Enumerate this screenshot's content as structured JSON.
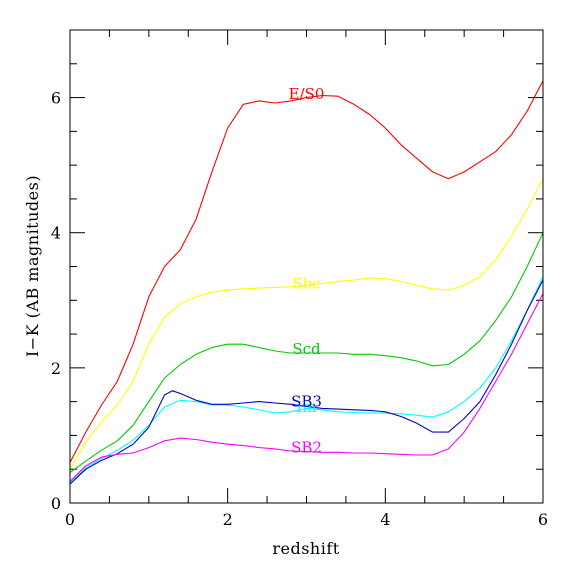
{
  "chart_data": {
    "type": "line",
    "title": "",
    "xlabel": "redshift",
    "ylabel": "I−K (AB magnitudes)",
    "xlim": [
      0,
      6
    ],
    "ylim": [
      0,
      7
    ],
    "grid": false,
    "legend": "none (series labelled inline)",
    "x_major_ticks": [
      0,
      2,
      4,
      6
    ],
    "x_tick_labels": [
      "0",
      "2",
      "4",
      "6"
    ],
    "y_major_ticks": [
      0,
      2,
      4,
      6
    ],
    "y_tick_labels": [
      "0",
      "2",
      "4",
      "6"
    ],
    "series": [
      {
        "name": "E/S0",
        "color": "#ff0000",
        "label_at": [
          3.0,
          6.05
        ],
        "points": [
          [
            0,
            0.6
          ],
          [
            0.2,
            1.05
          ],
          [
            0.4,
            1.45
          ],
          [
            0.6,
            1.8
          ],
          [
            0.8,
            2.35
          ],
          [
            1.0,
            3.05
          ],
          [
            1.2,
            3.5
          ],
          [
            1.4,
            3.75
          ],
          [
            1.6,
            4.2
          ],
          [
            1.8,
            4.9
          ],
          [
            2.0,
            5.55
          ],
          [
            2.2,
            5.9
          ],
          [
            2.4,
            5.95
          ],
          [
            2.6,
            5.92
          ],
          [
            2.8,
            5.95
          ],
          [
            3.0,
            6.0
          ],
          [
            3.2,
            6.03
          ],
          [
            3.4,
            6.02
          ],
          [
            3.6,
            5.9
          ],
          [
            3.8,
            5.75
          ],
          [
            4.0,
            5.55
          ],
          [
            4.2,
            5.3
          ],
          [
            4.4,
            5.1
          ],
          [
            4.6,
            4.9
          ],
          [
            4.8,
            4.8
          ],
          [
            5.0,
            4.9
          ],
          [
            5.2,
            5.05
          ],
          [
            5.4,
            5.2
          ],
          [
            5.6,
            5.45
          ],
          [
            5.8,
            5.8
          ],
          [
            6.0,
            6.25
          ]
        ]
      },
      {
        "name": "Sbc",
        "color": "#ffff00",
        "label_at": [
          3.0,
          3.25
        ],
        "points": [
          [
            0,
            0.5
          ],
          [
            0.2,
            0.9
          ],
          [
            0.4,
            1.2
          ],
          [
            0.6,
            1.45
          ],
          [
            0.8,
            1.8
          ],
          [
            1.0,
            2.35
          ],
          [
            1.2,
            2.75
          ],
          [
            1.4,
            2.95
          ],
          [
            1.6,
            3.05
          ],
          [
            1.8,
            3.12
          ],
          [
            2.0,
            3.15
          ],
          [
            2.2,
            3.17
          ],
          [
            2.4,
            3.18
          ],
          [
            2.6,
            3.19
          ],
          [
            2.8,
            3.2
          ],
          [
            3.0,
            3.22
          ],
          [
            3.2,
            3.25
          ],
          [
            3.4,
            3.28
          ],
          [
            3.6,
            3.3
          ],
          [
            3.8,
            3.33
          ],
          [
            4.0,
            3.32
          ],
          [
            4.2,
            3.28
          ],
          [
            4.4,
            3.22
          ],
          [
            4.6,
            3.17
          ],
          [
            4.8,
            3.15
          ],
          [
            5.0,
            3.22
          ],
          [
            5.2,
            3.35
          ],
          [
            5.4,
            3.6
          ],
          [
            5.6,
            3.95
          ],
          [
            5.8,
            4.35
          ],
          [
            6.0,
            4.8
          ]
        ]
      },
      {
        "name": "Scd",
        "color": "#00cc00",
        "label_at": [
          3.0,
          2.28
        ],
        "points": [
          [
            0,
            0.45
          ],
          [
            0.2,
            0.62
          ],
          [
            0.4,
            0.78
          ],
          [
            0.6,
            0.92
          ],
          [
            0.8,
            1.15
          ],
          [
            1.0,
            1.5
          ],
          [
            1.2,
            1.85
          ],
          [
            1.4,
            2.05
          ],
          [
            1.6,
            2.2
          ],
          [
            1.8,
            2.3
          ],
          [
            2.0,
            2.35
          ],
          [
            2.2,
            2.35
          ],
          [
            2.4,
            2.3
          ],
          [
            2.6,
            2.25
          ],
          [
            2.8,
            2.22
          ],
          [
            3.0,
            2.22
          ],
          [
            3.2,
            2.22
          ],
          [
            3.4,
            2.22
          ],
          [
            3.6,
            2.2
          ],
          [
            3.8,
            2.2
          ],
          [
            4.0,
            2.18
          ],
          [
            4.2,
            2.15
          ],
          [
            4.4,
            2.1
          ],
          [
            4.6,
            2.03
          ],
          [
            4.8,
            2.05
          ],
          [
            5.0,
            2.2
          ],
          [
            5.2,
            2.4
          ],
          [
            5.4,
            2.7
          ],
          [
            5.6,
            3.05
          ],
          [
            5.8,
            3.5
          ],
          [
            6.0,
            4.0
          ]
        ]
      },
      {
        "name": "Im",
        "color": "#00ffff",
        "label_at": [
          3.0,
          1.42
        ],
        "points": [
          [
            0,
            0.3
          ],
          [
            0.2,
            0.52
          ],
          [
            0.4,
            0.66
          ],
          [
            0.6,
            0.78
          ],
          [
            0.8,
            0.93
          ],
          [
            1.0,
            1.15
          ],
          [
            1.2,
            1.42
          ],
          [
            1.4,
            1.52
          ],
          [
            1.6,
            1.5
          ],
          [
            1.8,
            1.45
          ],
          [
            2.0,
            1.45
          ],
          [
            2.2,
            1.42
          ],
          [
            2.4,
            1.38
          ],
          [
            2.6,
            1.33
          ],
          [
            2.8,
            1.35
          ],
          [
            3.0,
            1.4
          ],
          [
            3.2,
            1.38
          ],
          [
            3.4,
            1.35
          ],
          [
            3.6,
            1.34
          ],
          [
            3.8,
            1.33
          ],
          [
            4.0,
            1.33
          ],
          [
            4.2,
            1.32
          ],
          [
            4.4,
            1.3
          ],
          [
            4.6,
            1.27
          ],
          [
            4.8,
            1.35
          ],
          [
            5.0,
            1.5
          ],
          [
            5.2,
            1.7
          ],
          [
            5.4,
            2.0
          ],
          [
            5.6,
            2.4
          ],
          [
            5.8,
            2.85
          ],
          [
            6.0,
            3.35
          ]
        ]
      },
      {
        "name": "SB3",
        "color": "#0000cc",
        "label_at": [
          3.0,
          1.5
        ],
        "points": [
          [
            0,
            0.28
          ],
          [
            0.2,
            0.5
          ],
          [
            0.4,
            0.63
          ],
          [
            0.6,
            0.73
          ],
          [
            0.8,
            0.87
          ],
          [
            1.0,
            1.12
          ],
          [
            1.2,
            1.6
          ],
          [
            1.3,
            1.66
          ],
          [
            1.4,
            1.62
          ],
          [
            1.6,
            1.52
          ],
          [
            1.8,
            1.46
          ],
          [
            2.0,
            1.46
          ],
          [
            2.2,
            1.48
          ],
          [
            2.4,
            1.5
          ],
          [
            2.6,
            1.48
          ],
          [
            2.8,
            1.46
          ],
          [
            3.0,
            1.43
          ],
          [
            3.2,
            1.4
          ],
          [
            3.4,
            1.39
          ],
          [
            3.6,
            1.38
          ],
          [
            3.8,
            1.37
          ],
          [
            4.0,
            1.35
          ],
          [
            4.2,
            1.28
          ],
          [
            4.4,
            1.18
          ],
          [
            4.6,
            1.05
          ],
          [
            4.8,
            1.05
          ],
          [
            5.0,
            1.25
          ],
          [
            5.2,
            1.5
          ],
          [
            5.4,
            1.9
          ],
          [
            5.6,
            2.35
          ],
          [
            5.8,
            2.85
          ],
          [
            6.0,
            3.3
          ]
        ]
      },
      {
        "name": "SB2",
        "color": "#ff00ff",
        "label_at": [
          3.0,
          0.82
        ],
        "points": [
          [
            0,
            0.32
          ],
          [
            0.2,
            0.55
          ],
          [
            0.4,
            0.68
          ],
          [
            0.6,
            0.72
          ],
          [
            0.8,
            0.74
          ],
          [
            1.0,
            0.82
          ],
          [
            1.2,
            0.92
          ],
          [
            1.4,
            0.96
          ],
          [
            1.6,
            0.94
          ],
          [
            1.8,
            0.9
          ],
          [
            2.0,
            0.87
          ],
          [
            2.2,
            0.85
          ],
          [
            2.4,
            0.82
          ],
          [
            2.6,
            0.8
          ],
          [
            2.8,
            0.77
          ],
          [
            3.0,
            0.76
          ],
          [
            3.2,
            0.75
          ],
          [
            3.4,
            0.75
          ],
          [
            3.6,
            0.74
          ],
          [
            3.8,
            0.74
          ],
          [
            4.0,
            0.73
          ],
          [
            4.2,
            0.72
          ],
          [
            4.4,
            0.71
          ],
          [
            4.6,
            0.71
          ],
          [
            4.8,
            0.8
          ],
          [
            5.0,
            1.05
          ],
          [
            5.2,
            1.4
          ],
          [
            5.4,
            1.8
          ],
          [
            5.6,
            2.2
          ],
          [
            5.8,
            2.65
          ],
          [
            6.0,
            3.1
          ]
        ]
      }
    ]
  }
}
